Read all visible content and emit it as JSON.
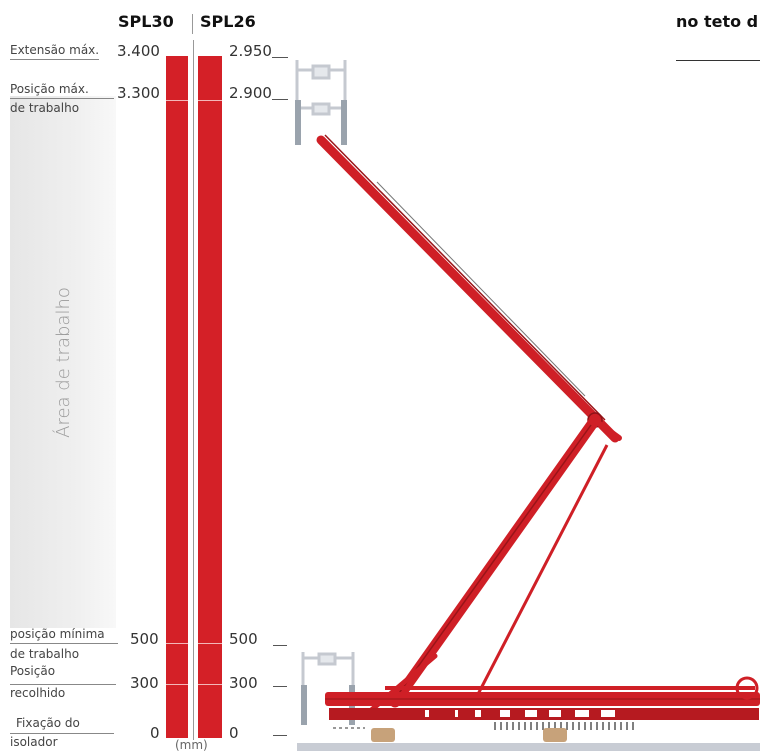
{
  "headers": {
    "spl30": "SPL30",
    "spl26": "SPL26",
    "right_caption": "no teto d"
  },
  "left_labels": {
    "max_extension": "Extensão máx.",
    "max_working_line1": "Posição máx.",
    "max_working_line2": "de trabalho",
    "min_working_line1": "posição mínima",
    "min_working_line2": "de trabalho",
    "retracted_line1": "Posição",
    "retracted_line2": "recolhido",
    "insulator_line1": "Fixação do",
    "insulator_line2": "isolador"
  },
  "working_area_label": "Área de trabalho",
  "spl30_values": {
    "v3400": "3.400",
    "v3300": "3.300",
    "v500": "500",
    "v300": "300",
    "v0": "0"
  },
  "spl26_values": {
    "v2950": "2.950",
    "v2900": "2.900",
    "v500": "500",
    "v300": "300",
    "v0": "0"
  },
  "unit_label": "(mm)",
  "colors": {
    "bar_red": "#d42027",
    "pantograph_red": "#cf1f26"
  }
}
